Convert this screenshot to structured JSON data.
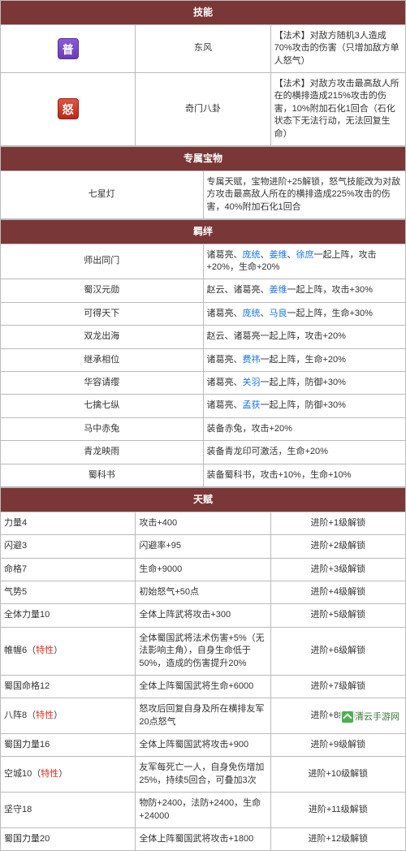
{
  "sections": {
    "skills": "技能",
    "treasure": "专属宝物",
    "bonds": "羁绊",
    "talents": "天赋"
  },
  "skills": [
    {
      "icon": "普",
      "iconClass": "icon-pu",
      "name": "东风",
      "desc": "【法术】对敌方随机3人造成70%攻击的伤害（只增加敌方单人怒气）"
    },
    {
      "icon": "怒",
      "iconClass": "icon-nu",
      "name": "奇门八卦",
      "desc": "【法术】对敌方攻击最高敌人所在的横排造成215%攻击的伤害，10%附加石化1回合（石化状态下无法行动，无法回复生命）"
    }
  ],
  "treasure": {
    "name": "七星灯",
    "desc": "专属天赋，宝物进阶+25解锁，怒气技能改为对敌方攻击最高敌人所在的横排造成225%攻击的伤害，40%附加石化1回合"
  },
  "bonds": [
    {
      "name": "师出同门",
      "parts": [
        {
          "t": "诸葛亮、"
        },
        {
          "t": "庞统",
          "l": 1
        },
        {
          "t": "、"
        },
        {
          "t": "姜维",
          "l": 1
        },
        {
          "t": "、"
        },
        {
          "t": "徐庶",
          "l": 1
        },
        {
          "t": "一起上阵，攻击+20%，生命+20%"
        }
      ]
    },
    {
      "name": "蜀汉元勋",
      "parts": [
        {
          "t": "赵云、诸葛亮、"
        },
        {
          "t": "姜维",
          "l": 1
        },
        {
          "t": "一起上阵，攻击+30%"
        }
      ]
    },
    {
      "name": "可得天下",
      "parts": [
        {
          "t": "诸葛亮、"
        },
        {
          "t": "庞统",
          "l": 1
        },
        {
          "t": "、"
        },
        {
          "t": "马良",
          "l": 1
        },
        {
          "t": "一起上阵，生命+30%"
        }
      ]
    },
    {
      "name": "双龙出海",
      "parts": [
        {
          "t": "赵云、诸葛亮一起上阵，攻击+20%"
        }
      ]
    },
    {
      "name": "继承相位",
      "parts": [
        {
          "t": "诸葛亮、"
        },
        {
          "t": "费祎",
          "l": 1
        },
        {
          "t": "一起上阵，生命+20%"
        }
      ]
    },
    {
      "name": "华容请缨",
      "parts": [
        {
          "t": "诸葛亮、"
        },
        {
          "t": "关羽",
          "l": 1
        },
        {
          "t": "一起上阵，防御+30%"
        }
      ]
    },
    {
      "name": "七擒七纵",
      "parts": [
        {
          "t": "诸葛亮、"
        },
        {
          "t": "孟获",
          "l": 1
        },
        {
          "t": "一起上阵，防御+30%"
        }
      ]
    },
    {
      "name": "马中赤兔",
      "parts": [
        {
          "t": "装备赤兔，攻击+20%"
        }
      ]
    },
    {
      "name": "青龙映雨",
      "parts": [
        {
          "t": "装备青龙印可激活，生命+20%"
        }
      ]
    },
    {
      "name": "蜀科书",
      "parts": [
        {
          "t": "装备蜀科书，攻击+10%，生命+10%"
        }
      ]
    }
  ],
  "specialLabel": "特性",
  "talents": [
    {
      "name": "力量4",
      "desc": "攻击+400",
      "unlock": "进阶+1级解锁"
    },
    {
      "name": "闪避3",
      "desc": "闪避率+95",
      "unlock": "进阶+2级解锁"
    },
    {
      "name": "命格7",
      "desc": "生命+9000",
      "unlock": "进阶+3级解锁"
    },
    {
      "name": "气势5",
      "desc": "初始怒气+50点",
      "unlock": "进阶+4级解锁"
    },
    {
      "name": "全体力量10",
      "desc": "全体上阵武将攻击+300",
      "unlock": "进阶+5级解锁"
    },
    {
      "name": "帷幄6",
      "special": true,
      "desc": "全体蜀国武将法术伤害+5%（无法影响主角），自身生命低于50%，造成的伤害提升20%",
      "unlock": "进阶+6级解锁"
    },
    {
      "name": "蜀国命格12",
      "desc": "全体上阵蜀国武将生命+6000",
      "unlock": "进阶+7级解锁"
    },
    {
      "name": "八阵8",
      "special": true,
      "desc": "怒攻后回复自身及所在横排友军20点怒气",
      "unlock": "进阶+8级解锁"
    },
    {
      "name": "蜀国力量16",
      "desc": "全体上阵蜀国武将攻击+900",
      "unlock": "进阶+9级解锁"
    },
    {
      "name": "空城10",
      "special": true,
      "desc": "友军每死亡一人，自身免伤增加25%，持续5回合，可叠加3次",
      "unlock": "进阶+10级解锁"
    },
    {
      "name": "坚守18",
      "desc": "物防+2400，法防+2400，生命+24000",
      "unlock": "进阶+11级解锁"
    },
    {
      "name": "蜀国力量20",
      "desc": "全体上阵蜀国武将攻击+1800",
      "unlock": "进阶+12级解锁"
    }
  ],
  "footer": "清云手游网"
}
